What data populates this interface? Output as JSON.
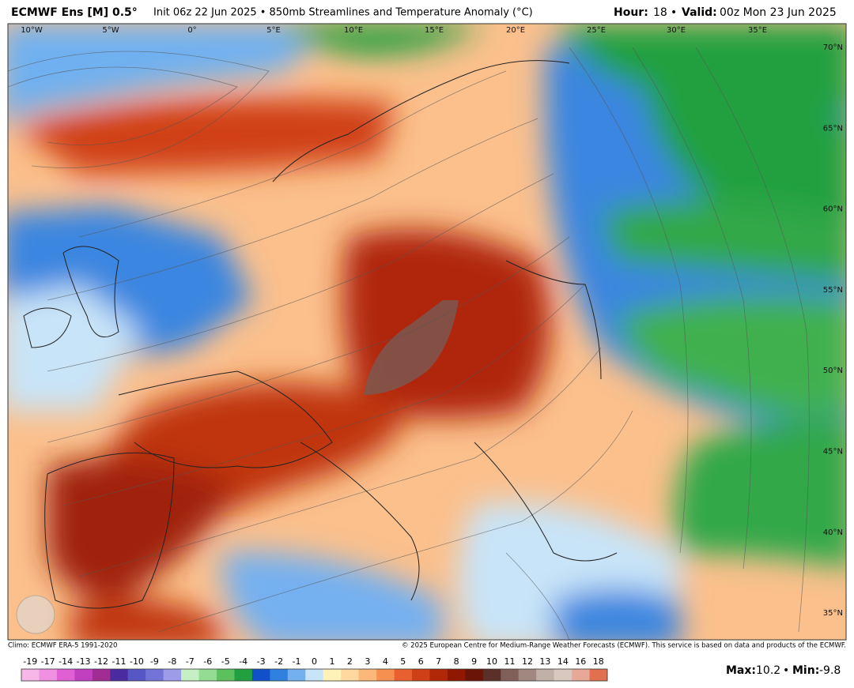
{
  "header": {
    "model": "ECMWF Ens [M] 0.5°",
    "description": "Init 06z 22 Jun 2025 • 850mb Streamlines and Temperature Anomaly (°C)",
    "hour_label": "Hour:",
    "hour": "18",
    "separator": "•",
    "valid_label": "Valid:",
    "valid": "00z Mon 23 Jun 2025"
  },
  "map": {
    "longitude_labels": [
      "10°W",
      "5°W",
      "0°",
      "5°E",
      "10°E",
      "15°E",
      "20°E",
      "25°E",
      "30°E",
      "35°E"
    ],
    "latitude_labels": [
      "70°N",
      "65°N",
      "60°N",
      "55°N",
      "50°N",
      "45°N",
      "40°N",
      "35°N"
    ]
  },
  "footer": {
    "climo": "Climo: ECMWF ERA-5 1991-2020",
    "copyright": "© 2025 European Centre for Medium-Range Weather Forecasts (ECMWF). This service is based on data and products of the ECMWF."
  },
  "colorbar": {
    "labels": [
      "-19",
      "-17",
      "-14",
      "-13",
      "-12",
      "-11",
      "-10",
      "-9",
      "-8",
      "-7",
      "-6",
      "-5",
      "-4",
      "-3",
      "-2",
      "-1",
      "0",
      "1",
      "2",
      "3",
      "4",
      "5",
      "6",
      "7",
      "8",
      "9",
      "10",
      "11",
      "12",
      "13",
      "14",
      "16",
      "18"
    ],
    "colors": [
      "#f7b8e8",
      "#f090e0",
      "#e060d4",
      "#c040c0",
      "#a02c94",
      "#4a2ca0",
      "#5656c4",
      "#7474d8",
      "#9c9ce8",
      "#c4f0c4",
      "#94dc94",
      "#5cc05c",
      "#22a040",
      "#1050c8",
      "#3080e0",
      "#74b0f0",
      "#c8e4f8",
      "#fff2b8",
      "#ffd8a0",
      "#fbb878",
      "#f59050",
      "#e86030",
      "#d04018",
      "#b02808",
      "#901800",
      "#6a1408",
      "#5a3028",
      "#806058",
      "#a08880",
      "#c0b0a8",
      "#d8c8c0",
      "#e8a898",
      "#e07050"
    ]
  },
  "stats": {
    "max_label": "Max:",
    "max": 10.2,
    "separator": "•",
    "min_label": "Min:",
    "min": -9.8
  }
}
